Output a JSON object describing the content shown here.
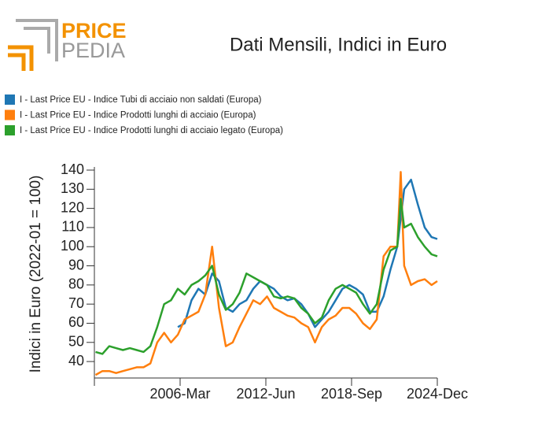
{
  "logo": {
    "line1": "PRICE",
    "line2": "PEDIA"
  },
  "chart_data": {
    "type": "line",
    "title": "Dati Mensili, Indici in Euro",
    "ylabel": "Indici in Euro (2022-01 = 100)",
    "x": [
      "2000-01",
      "2000-07",
      "2001-01",
      "2001-07",
      "2002-01",
      "2002-07",
      "2003-01",
      "2003-07",
      "2004-01",
      "2004-07",
      "2005-01",
      "2005-07",
      "2006-01",
      "2006-07",
      "2007-01",
      "2007-07",
      "2008-01",
      "2008-07",
      "2009-01",
      "2009-07",
      "2010-01",
      "2010-07",
      "2011-01",
      "2011-07",
      "2012-01",
      "2012-07",
      "2013-01",
      "2013-07",
      "2014-01",
      "2014-07",
      "2015-01",
      "2015-07",
      "2016-01",
      "2016-07",
      "2017-01",
      "2017-07",
      "2018-01",
      "2018-07",
      "2019-01",
      "2019-07",
      "2020-01",
      "2020-07",
      "2021-01",
      "2021-07",
      "2022-01",
      "2022-04",
      "2022-07",
      "2023-01",
      "2023-07",
      "2024-01",
      "2024-07",
      "2024-12"
    ],
    "series": [
      {
        "name": "I - Last Price EU - Indice Tubi di acciaio non saldati (Europa)",
        "color": "#1f77b4",
        "values": [
          null,
          null,
          null,
          null,
          null,
          null,
          null,
          null,
          null,
          null,
          null,
          null,
          58,
          60,
          72,
          78,
          75,
          86,
          82,
          68,
          66,
          70,
          72,
          78,
          82,
          80,
          78,
          74,
          72,
          73,
          70,
          65,
          58,
          62,
          66,
          72,
          78,
          80,
          78,
          75,
          66,
          66,
          74,
          88,
          100,
          115,
          130,
          135,
          122,
          110,
          105,
          104
        ]
      },
      {
        "name": "I - Last Price EU - Indice Prodotti lunghi di acciaio (Europa)",
        "color": "#ff7f0e",
        "values": [
          33,
          35,
          35,
          34,
          35,
          36,
          37,
          37,
          39,
          50,
          55,
          50,
          54,
          62,
          64,
          66,
          75,
          100,
          68,
          48,
          50,
          58,
          65,
          72,
          70,
          74,
          68,
          66,
          64,
          63,
          60,
          58,
          50,
          58,
          62,
          64,
          68,
          68,
          65,
          60,
          57,
          62,
          95,
          100,
          100,
          139,
          90,
          80,
          82,
          83,
          80,
          82
        ]
      },
      {
        "name": "I - Last Price EU - Indice Prodotti lunghi di acciaio legato (Europa)",
        "color": "#2ca02c",
        "values": [
          45,
          44,
          48,
          47,
          46,
          47,
          46,
          45,
          48,
          58,
          70,
          72,
          78,
          75,
          80,
          82,
          85,
          90,
          75,
          67,
          70,
          76,
          86,
          84,
          82,
          80,
          74,
          73,
          74,
          73,
          68,
          65,
          60,
          63,
          72,
          78,
          80,
          78,
          76,
          70,
          65,
          70,
          88,
          98,
          100,
          125,
          110,
          112,
          105,
          100,
          96,
          95
        ]
      }
    ],
    "xlim": [
      "1999-12",
      "2024-12"
    ],
    "xticks": [
      {
        "value": "1999-12",
        "label": null
      },
      {
        "value": "2006-03",
        "label": "2006-Mar"
      },
      {
        "value": "2012-06",
        "label": "2012-Jun"
      },
      {
        "value": "2018-09",
        "label": "2018-Sep"
      },
      {
        "value": "2024-12",
        "label": "2024-Dec"
      }
    ],
    "ylim": [
      31.4,
      140
    ],
    "yticks": [
      40,
      50,
      60,
      70,
      80,
      90,
      100,
      110,
      120,
      130,
      140
    ],
    "legend": "top-left"
  }
}
